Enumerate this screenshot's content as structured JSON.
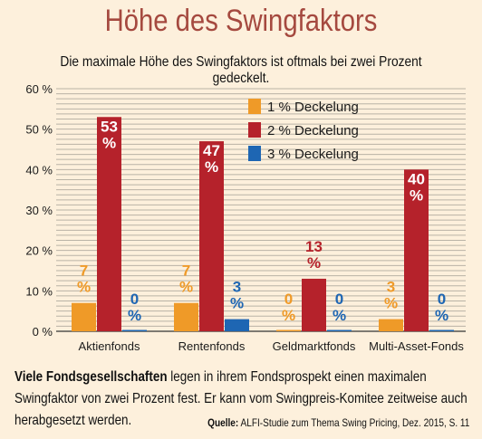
{
  "title": "Höhe des Swingfaktors",
  "subtitle": "Die maximale Höhe des Swingfaktors ist oftmals bei zwei Prozent gedeckelt.",
  "caption": {
    "lead": "Viele Fondsgesellschaften",
    "line1_rest": " legen in ihrem Fondsprospekt einen maximalen",
    "line2": "Swingfaktor von zwei Prozent fest. Er kann vom Swingpreis-Komitee zeitweise auch",
    "line3": "herabgesetzt werden."
  },
  "source": {
    "label": "Quelle:",
    "text": " ALFI-Studie zum Thema Swing Pricing, Dez. 2015, S. 11"
  },
  "colors": {
    "s1": "#ef9a28",
    "s2": "#b5222b",
    "s3": "#1e66b3",
    "grid": "#b9b3a6",
    "background": "#fdf0dc"
  },
  "chart_data": {
    "type": "bar",
    "categories": [
      "Aktienfonds",
      "Rentenfonds",
      "Geldmarktfonds",
      "Multi-Asset-Fonds"
    ],
    "series": [
      {
        "name": "1 % Deckelung",
        "values": [
          7,
          7,
          0,
          3
        ],
        "labels": [
          "7",
          "7",
          "0",
          "3"
        ]
      },
      {
        "name": "2 % Deckelung",
        "values": [
          53,
          47,
          13,
          40
        ],
        "labels": [
          "53",
          "47",
          "13",
          "40"
        ]
      },
      {
        "name": "3 % Deckelung",
        "values": [
          0,
          3,
          0,
          0
        ],
        "labels": [
          "0",
          "3",
          "0",
          "0"
        ]
      }
    ],
    "value_suffix": "%",
    "ylim": [
      0,
      60
    ],
    "yticks": [
      0,
      10,
      20,
      30,
      40,
      50,
      60
    ],
    "ytick_labels": [
      "0 %",
      "10 %",
      "20 %",
      "30 %",
      "40 %",
      "50 %",
      "60 %"
    ],
    "grid": true,
    "legend": "top-center"
  }
}
